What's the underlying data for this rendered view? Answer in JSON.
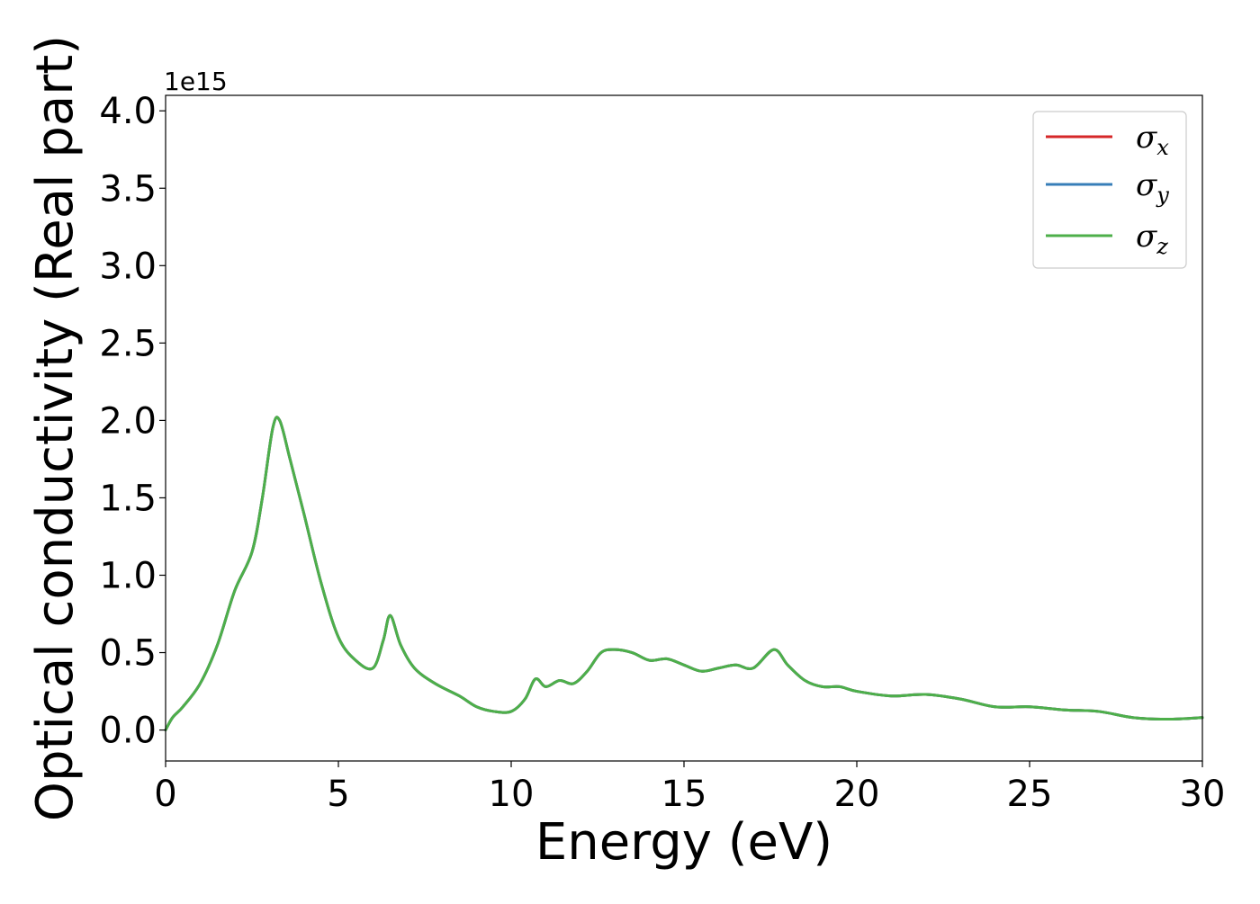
{
  "chart_data": {
    "type": "line",
    "xlabel": "Energy (eV)",
    "ylabel": "Optical conductivity (Real part)",
    "y_offset_text": "1e15",
    "xlim": [
      0,
      30
    ],
    "ylim": [
      -0.2,
      4.1
    ],
    "xticks": [
      0,
      5,
      10,
      15,
      20,
      25,
      30
    ],
    "xtick_labels": [
      "0",
      "5",
      "10",
      "15",
      "20",
      "25",
      "30"
    ],
    "yticks": [
      0.0,
      0.5,
      1.0,
      1.5,
      2.0,
      2.5,
      3.0,
      3.5,
      4.0
    ],
    "ytick_labels": [
      "0.0",
      "0.5",
      "1.0",
      "1.5",
      "2.0",
      "2.5",
      "3.0",
      "3.5",
      "4.0"
    ],
    "grid": false,
    "legend_position": "top-right",
    "x": [
      0.0,
      0.2,
      0.5,
      1.0,
      1.5,
      2.0,
      2.5,
      2.8,
      3.1,
      3.3,
      3.6,
      4.0,
      4.5,
      5.0,
      5.5,
      6.0,
      6.3,
      6.5,
      6.8,
      7.2,
      7.8,
      8.5,
      9.0,
      9.5,
      10.0,
      10.4,
      10.7,
      11.0,
      11.4,
      11.8,
      12.2,
      12.6,
      13.0,
      13.5,
      14.0,
      14.5,
      15.0,
      15.5,
      16.0,
      16.5,
      17.0,
      17.6,
      18.0,
      18.5,
      19.0,
      19.5,
      20.0,
      21.0,
      22.0,
      23.0,
      24.0,
      25.0,
      26.0,
      27.0,
      28.0,
      29.0,
      30.0
    ],
    "series": [
      {
        "name": "σx",
        "color": "#d62728",
        "values": [
          0.0,
          0.08,
          0.15,
          0.3,
          0.55,
          0.9,
          1.15,
          1.5,
          1.95,
          2.0,
          1.75,
          1.4,
          0.95,
          0.6,
          0.45,
          0.4,
          0.58,
          0.74,
          0.55,
          0.4,
          0.3,
          0.22,
          0.15,
          0.12,
          0.12,
          0.2,
          0.33,
          0.28,
          0.32,
          0.3,
          0.38,
          0.5,
          0.52,
          0.5,
          0.45,
          0.46,
          0.42,
          0.38,
          0.4,
          0.42,
          0.4,
          0.52,
          0.42,
          0.32,
          0.28,
          0.28,
          0.25,
          0.22,
          0.23,
          0.2,
          0.15,
          0.15,
          0.13,
          0.12,
          0.08,
          0.07,
          0.08
        ]
      },
      {
        "name": "σy",
        "color": "#377eb8",
        "values": [
          0.0,
          0.08,
          0.15,
          0.3,
          0.55,
          0.9,
          1.15,
          1.5,
          1.95,
          2.0,
          1.75,
          1.4,
          0.95,
          0.6,
          0.45,
          0.4,
          0.58,
          0.74,
          0.55,
          0.4,
          0.3,
          0.22,
          0.15,
          0.12,
          0.12,
          0.2,
          0.33,
          0.28,
          0.32,
          0.3,
          0.38,
          0.5,
          0.52,
          0.5,
          0.45,
          0.46,
          0.42,
          0.38,
          0.4,
          0.42,
          0.4,
          0.52,
          0.42,
          0.32,
          0.28,
          0.28,
          0.25,
          0.22,
          0.23,
          0.2,
          0.15,
          0.15,
          0.13,
          0.12,
          0.08,
          0.07,
          0.08
        ]
      },
      {
        "name": "σz",
        "color": "#4daf4a",
        "values": [
          0.0,
          0.08,
          0.15,
          0.3,
          0.55,
          0.9,
          1.15,
          1.5,
          1.95,
          2.0,
          1.75,
          1.4,
          0.95,
          0.6,
          0.45,
          0.4,
          0.58,
          0.74,
          0.55,
          0.4,
          0.3,
          0.22,
          0.15,
          0.12,
          0.12,
          0.2,
          0.33,
          0.28,
          0.32,
          0.3,
          0.38,
          0.5,
          0.52,
          0.5,
          0.45,
          0.46,
          0.42,
          0.38,
          0.4,
          0.42,
          0.4,
          0.52,
          0.42,
          0.32,
          0.28,
          0.28,
          0.25,
          0.22,
          0.23,
          0.2,
          0.15,
          0.15,
          0.13,
          0.12,
          0.08,
          0.07,
          0.08
        ]
      }
    ],
    "legend": [
      {
        "symbol": "σ",
        "sub": "x"
      },
      {
        "symbol": "σ",
        "sub": "y"
      },
      {
        "symbol": "σ",
        "sub": "z"
      }
    ]
  }
}
